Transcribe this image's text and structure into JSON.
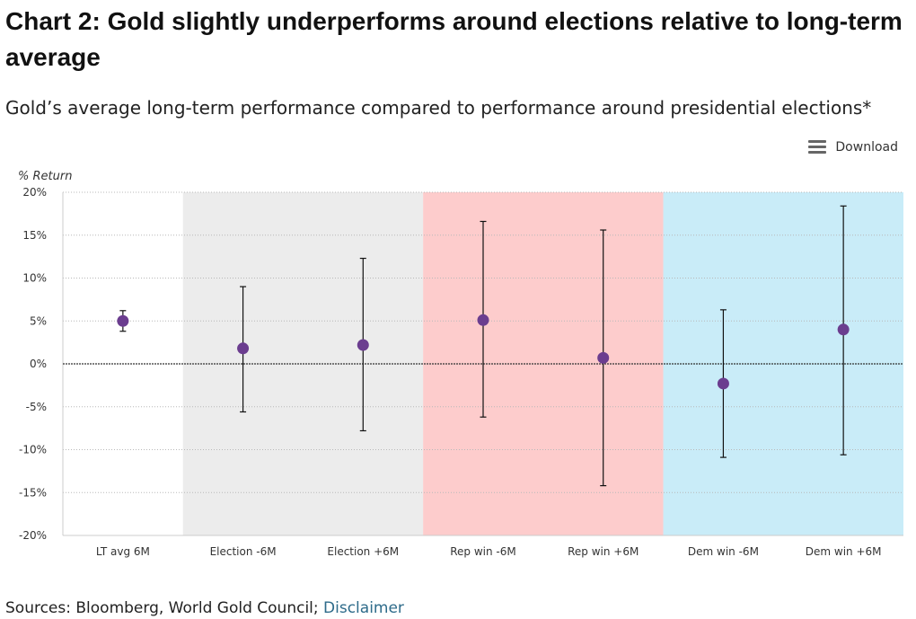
{
  "header": {
    "title": "Chart 2: Gold slightly underperforms around elections relative to long-term average",
    "subtitle": "Gold’s average long-term performance compared to performance around presidential elections*",
    "download_label": "Download"
  },
  "footer": {
    "sources": "Sources: Bloomberg, World Gold Council;",
    "disclaimer_link": "Disclaimer"
  },
  "colors": {
    "point": "#6b3d8f",
    "band_election": "#ececec",
    "band_rep": "#fdcccc",
    "band_dem": "#c9ecf8"
  },
  "chart_data": {
    "type": "scatter",
    "ylabel": "% Return",
    "ylim": [
      -20,
      20
    ],
    "yticks": [
      20,
      15,
      10,
      5,
      0,
      -5,
      -10,
      -15,
      -20
    ],
    "ytick_labels": [
      "20%",
      "15%",
      "10%",
      "5%",
      "0%",
      "-5%",
      "-10%",
      "-15%",
      "-20%"
    ],
    "categories": [
      "LT avg 6M",
      "Election -6M",
      "Election +6M",
      "Rep win -6M",
      "Rep win +6M",
      "Dem win -6M",
      "Dem win +6M"
    ],
    "values": [
      5.0,
      1.8,
      2.2,
      5.1,
      0.7,
      -2.3,
      4.0
    ],
    "error_high": [
      6.2,
      9.0,
      12.3,
      16.6,
      15.6,
      6.3,
      18.4
    ],
    "error_low": [
      3.8,
      -5.6,
      -7.8,
      -6.2,
      -14.2,
      -10.9,
      -10.6
    ],
    "bands": [
      {
        "from": 1,
        "to": 2,
        "color": "#ececec"
      },
      {
        "from": 3,
        "to": 4,
        "color": "#fdcccc"
      },
      {
        "from": 5,
        "to": 6,
        "color": "#c9ecf8"
      }
    ],
    "grid": true
  }
}
